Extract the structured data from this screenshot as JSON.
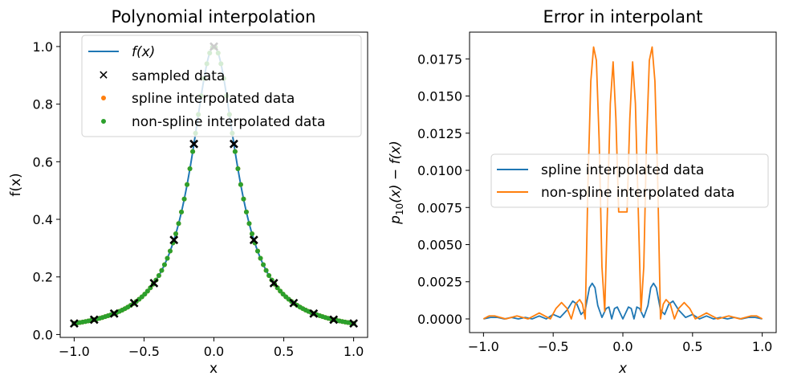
{
  "chart_data": [
    {
      "type": "line",
      "title": "Polynomial interpolation",
      "xlabel": "x",
      "ylabel": "f(x)",
      "xlim": [
        -1.1,
        1.1
      ],
      "ylim": [
        -0.01,
        1.05
      ],
      "xticks": [
        -1.0,
        -0.5,
        0.0,
        0.5,
        1.0
      ],
      "xtick_labels": [
        "−1.0",
        "−0.5",
        "0.0",
        "0.5",
        "1.0"
      ],
      "yticks": [
        0.0,
        0.2,
        0.4,
        0.6,
        0.8,
        1.0
      ],
      "ytick_labels": [
        "0.0",
        "0.2",
        "0.4",
        "0.6",
        "0.8",
        "1.0"
      ],
      "grid": false,
      "legend_position": "top-right",
      "function": "1/(1+25x^2)",
      "sampled_x": [
        -1.0,
        -0.857,
        -0.714,
        -0.571,
        -0.429,
        -0.286,
        -0.143,
        0.0,
        0.143,
        0.286,
        0.429,
        0.571,
        0.714,
        0.857,
        1.0
      ],
      "interp_x_range": [
        -1.0,
        1.0
      ],
      "interp_point_count": 100,
      "series": [
        {
          "name": "f(x)",
          "name_italic": true,
          "style": "line",
          "color": "#1f77b4"
        },
        {
          "name": "sampled data",
          "style": "x-marker",
          "color": "#000000"
        },
        {
          "name": "spline interpolated data",
          "style": "dot",
          "color": "#ff7f0e"
        },
        {
          "name": "non-spline interpolated data",
          "style": "dot",
          "color": "#2ca02c"
        }
      ]
    },
    {
      "type": "line",
      "title": "Error in interpolant",
      "xlabel": "x",
      "ylabel_main": "p",
      "ylabel_sub": "10",
      "ylabel_rest": "(x) − f(x)",
      "xlim": [
        -1.1,
        1.1
      ],
      "ylim": [
        -0.00092,
        0.0193
      ],
      "xticks": [
        -1.0,
        -0.5,
        0.0,
        0.5,
        1.0
      ],
      "xtick_labels": [
        "−1.0",
        "−0.5",
        "0.0",
        "0.5",
        "1.0"
      ],
      "yticks": [
        0.0,
        0.0025,
        0.005,
        0.0075,
        0.01,
        0.0125,
        0.015,
        0.0175
      ],
      "ytick_labels": [
        "0.0000",
        "0.0025",
        "0.0050",
        "0.0075",
        "0.0100",
        "0.0125",
        "0.0150",
        "0.0175"
      ],
      "grid": false,
      "legend_position": "center",
      "series": [
        {
          "name": "spline interpolated data",
          "color": "#1f77b4",
          "x": [
            -1.0,
            -0.95,
            -0.9,
            -0.85,
            -0.8,
            -0.75,
            -0.7,
            -0.65,
            -0.6,
            -0.55,
            -0.5,
            -0.45,
            -0.4,
            -0.36,
            -0.33,
            -0.3,
            -0.27,
            -0.24,
            -0.22,
            -0.2,
            -0.18,
            -0.15,
            -0.12,
            -0.1,
            -0.08,
            -0.06,
            -0.04,
            -0.02,
            0.0,
            0.02,
            0.04,
            0.06,
            0.08,
            0.1,
            0.12,
            0.15,
            0.18,
            0.2,
            0.22,
            0.24,
            0.27,
            0.3,
            0.33,
            0.36,
            0.4,
            0.45,
            0.5,
            0.55,
            0.6,
            0.65,
            0.7,
            0.75,
            0.8,
            0.85,
            0.9,
            0.95,
            1.0
          ],
          "values": [
            0.0,
            0.0001,
            0.0001,
            0.0,
            0.0001,
            0.0,
            0.0001,
            0.0,
            0.0002,
            0.0,
            0.0003,
            0.0001,
            0.0006,
            0.0012,
            0.001,
            0.0003,
            0.0006,
            0.0021,
            0.0024,
            0.0021,
            0.0009,
            0.0001,
            0.0007,
            0.0008,
            0.0,
            0.0007,
            0.0008,
            0.0004,
            0.0,
            0.0004,
            0.0008,
            0.0007,
            0.0,
            0.0008,
            0.0007,
            0.0001,
            0.0009,
            0.0021,
            0.0024,
            0.0021,
            0.0006,
            0.0003,
            0.001,
            0.0012,
            0.0006,
            0.0001,
            0.0003,
            0.0,
            0.0002,
            0.0,
            0.0001,
            0.0,
            0.0001,
            0.0,
            0.0001,
            0.0001,
            0.0
          ]
        },
        {
          "name": "non-spline interpolated data",
          "color": "#ff7f0e",
          "x": [
            -1.0,
            -0.96,
            -0.92,
            -0.88,
            -0.84,
            -0.8,
            -0.76,
            -0.72,
            -0.68,
            -0.64,
            -0.6,
            -0.56,
            -0.52,
            -0.48,
            -0.44,
            -0.4,
            -0.37,
            -0.34,
            -0.31,
            -0.29,
            -0.27,
            -0.25,
            -0.23,
            -0.21,
            -0.19,
            -0.17,
            -0.15,
            -0.13,
            -0.11,
            -0.09,
            -0.07,
            -0.05,
            -0.03,
            -0.01,
            0.01,
            0.03,
            0.05,
            0.07,
            0.09,
            0.11,
            0.13,
            0.15,
            0.17,
            0.19,
            0.21,
            0.23,
            0.25,
            0.27,
            0.29,
            0.31,
            0.34,
            0.37,
            0.4,
            0.44,
            0.48,
            0.52,
            0.56,
            0.6,
            0.64,
            0.68,
            0.72,
            0.76,
            0.8,
            0.84,
            0.88,
            0.92,
            0.96,
            1.0
          ],
          "values": [
            0.0,
            0.0002,
            0.0002,
            0.0001,
            0.0,
            0.0001,
            0.0002,
            0.0001,
            0.0,
            0.0002,
            0.0004,
            0.0002,
            0.0,
            0.0007,
            0.0011,
            0.0007,
            0.0,
            0.001,
            0.0013,
            0.001,
            0.0,
            0.0093,
            0.016,
            0.0183,
            0.0174,
            0.012,
            0.0035,
            0.0005,
            0.0075,
            0.0145,
            0.0173,
            0.0135,
            0.0072,
            0.0072,
            0.0072,
            0.0072,
            0.0135,
            0.0173,
            0.0145,
            0.0075,
            0.0005,
            0.0035,
            0.012,
            0.0174,
            0.0183,
            0.016,
            0.0093,
            0.0,
            0.001,
            0.0013,
            0.001,
            0.0,
            0.0007,
            0.0011,
            0.0007,
            0.0,
            0.0002,
            0.0004,
            0.0002,
            0.0,
            0.0001,
            0.0002,
            0.0001,
            0.0,
            0.0001,
            0.0002,
            0.0002,
            0.0
          ]
        }
      ]
    }
  ]
}
